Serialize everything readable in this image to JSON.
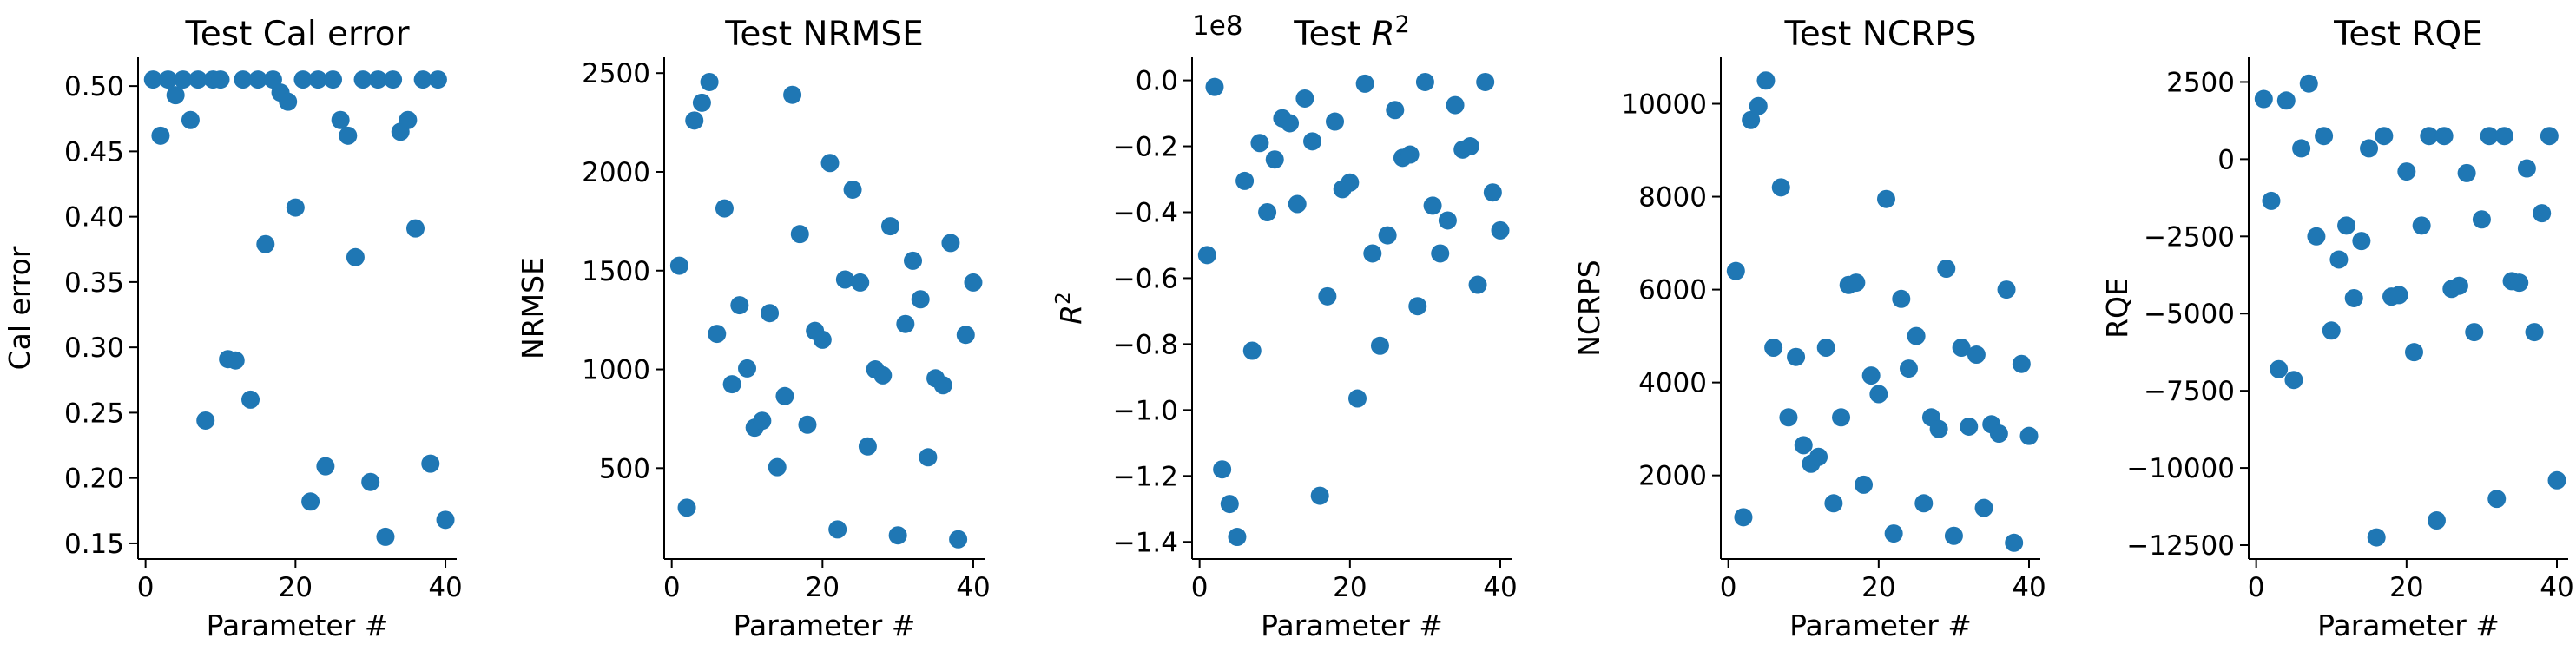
{
  "chart_data": [
    {
      "type": "scatter",
      "title": "Test Cal error",
      "xlabel": "Parameter #",
      "ylabel": "Cal error",
      "xlim": [
        -1,
        41.5
      ],
      "ylim": [
        0.138,
        0.522
      ],
      "xticks": [
        0,
        20,
        40
      ],
      "yticks": [
        0.15,
        0.2,
        0.25,
        0.3,
        0.35,
        0.4,
        0.45,
        0.5
      ],
      "ytick_labels": [
        "0.15",
        "0.20",
        "0.25",
        "0.30",
        "0.35",
        "0.40",
        "0.45",
        "0.50"
      ],
      "offset_text": "",
      "color": "#1f77b4",
      "x": [
        1,
        2,
        3,
        4,
        5,
        6,
        7,
        8,
        9,
        10,
        11,
        12,
        13,
        14,
        15,
        16,
        17,
        18,
        19,
        20,
        21,
        22,
        23,
        24,
        25,
        26,
        27,
        28,
        29,
        30,
        31,
        32,
        33,
        34,
        35,
        36,
        37,
        38,
        39,
        40
      ],
      "y": [
        0.505,
        0.462,
        0.505,
        0.493,
        0.505,
        0.474,
        0.505,
        0.244,
        0.505,
        0.505,
        0.291,
        0.29,
        0.505,
        0.26,
        0.505,
        0.379,
        0.505,
        0.495,
        0.488,
        0.407,
        0.505,
        0.182,
        0.505,
        0.209,
        0.505,
        0.474,
        0.462,
        0.369,
        0.505,
        0.197,
        0.505,
        0.155,
        0.505,
        0.465,
        0.474,
        0.391,
        0.505,
        0.211,
        0.505,
        0.168
      ]
    },
    {
      "type": "scatter",
      "title": "Test NRMSE",
      "xlabel": "Parameter #",
      "ylabel": "NRMSE",
      "xlim": [
        -1,
        41.5
      ],
      "ylim": [
        40,
        2580
      ],
      "xticks": [
        0,
        20,
        40
      ],
      "yticks": [
        500,
        1000,
        1500,
        2000,
        2500
      ],
      "ytick_labels": [
        "500",
        "1000",
        "1500",
        "2000",
        "2500"
      ],
      "offset_text": "",
      "color": "#1f77b4",
      "x": [
        1,
        2,
        3,
        4,
        5,
        6,
        7,
        8,
        9,
        10,
        11,
        12,
        13,
        14,
        15,
        16,
        17,
        18,
        19,
        20,
        21,
        22,
        23,
        24,
        25,
        26,
        27,
        28,
        29,
        30,
        31,
        32,
        33,
        34,
        35,
        36,
        37,
        38,
        39,
        40
      ],
      "y": [
        1525,
        300,
        2260,
        2350,
        2455,
        1180,
        1815,
        925,
        1325,
        1005,
        705,
        740,
        1285,
        505,
        865,
        2390,
        1685,
        720,
        1195,
        1150,
        2045,
        190,
        1455,
        1910,
        1440,
        610,
        1000,
        970,
        1725,
        160,
        1230,
        1550,
        1355,
        555,
        955,
        920,
        1640,
        140,
        1175,
        1440
      ]
    },
    {
      "type": "scatter",
      "title": "Test R^2",
      "title_main": "Test ",
      "title_symbol": "R",
      "title_sup": "2",
      "xlabel": "Parameter #",
      "ylabel": "R^2",
      "ylabel_symbol": "R",
      "ylabel_sup": "2",
      "xlim": [
        -1,
        41.5
      ],
      "ylim": [
        -1.452,
        0.07
      ],
      "xticks": [
        0,
        20,
        40
      ],
      "yticks": [
        -1.4,
        -1.2,
        -1.0,
        -0.8,
        -0.6,
        -0.4,
        -0.2,
        0.0
      ],
      "ytick_labels": [
        "−1.4",
        "−1.2",
        "−1.0",
        "−0.8",
        "−0.6",
        "−0.4",
        "−0.2",
        "0.0"
      ],
      "offset_text": "1e8",
      "color": "#1f77b4",
      "x": [
        1,
        2,
        3,
        4,
        5,
        6,
        7,
        8,
        9,
        10,
        11,
        12,
        13,
        14,
        15,
        16,
        17,
        18,
        19,
        20,
        21,
        22,
        23,
        24,
        25,
        26,
        27,
        28,
        29,
        30,
        31,
        32,
        33,
        34,
        35,
        36,
        37,
        38,
        39,
        40
      ],
      "y": [
        -0.53,
        -0.02,
        -1.18,
        -1.285,
        -1.385,
        -0.305,
        -0.82,
        -0.19,
        -0.4,
        -0.24,
        -0.115,
        -0.13,
        -0.375,
        -0.055,
        -0.185,
        -1.26,
        -0.655,
        -0.125,
        -0.33,
        -0.31,
        -0.965,
        -0.01,
        -0.525,
        -0.805,
        -0.47,
        -0.09,
        -0.235,
        -0.225,
        -0.685,
        -0.005,
        -0.38,
        -0.525,
        -0.425,
        -0.075,
        -0.21,
        -0.2,
        -0.62,
        -0.005,
        -0.34,
        -0.455
      ]
    },
    {
      "type": "scatter",
      "title": "Test NCRPS",
      "xlabel": "Parameter #",
      "ylabel": "NCRPS",
      "xlim": [
        -1,
        41.5
      ],
      "ylim": [
        200,
        11000
      ],
      "xticks": [
        0,
        20,
        40
      ],
      "yticks": [
        2000,
        4000,
        6000,
        8000,
        10000
      ],
      "ytick_labels": [
        "2000",
        "4000",
        "6000",
        "8000",
        "10000"
      ],
      "offset_text": "",
      "color": "#1f77b4",
      "x": [
        1,
        2,
        3,
        4,
        5,
        6,
        7,
        8,
        9,
        10,
        11,
        12,
        13,
        14,
        15,
        16,
        17,
        18,
        19,
        20,
        21,
        22,
        23,
        24,
        25,
        26,
        27,
        28,
        29,
        30,
        31,
        32,
        33,
        34,
        35,
        36,
        37,
        38,
        39,
        40
      ],
      "y": [
        6400,
        1100,
        9650,
        9950,
        10500,
        4750,
        8200,
        3250,
        4550,
        2650,
        2250,
        2400,
        4750,
        1400,
        3250,
        6100,
        6150,
        1800,
        4150,
        3750,
        7950,
        750,
        5800,
        4300,
        5000,
        1400,
        3250,
        3000,
        6450,
        700,
        4750,
        3050,
        4600,
        1300,
        3100,
        2900,
        6000,
        550,
        4400,
        2850
      ]
    },
    {
      "type": "scatter",
      "title": "Test RQE",
      "xlabel": "Parameter #",
      "ylabel": "RQE",
      "xlim": [
        -1,
        41.5
      ],
      "ylim": [
        -12950,
        3300
      ],
      "xticks": [
        0,
        20,
        40
      ],
      "yticks": [
        -12500,
        -10000,
        -7500,
        -5000,
        -2500,
        0,
        2500
      ],
      "ytick_labels": [
        "−12500",
        "−10000",
        "−7500",
        "−5000",
        "−2500",
        "0",
        "2500"
      ],
      "offset_text": "",
      "color": "#1f77b4",
      "x": [
        1,
        2,
        3,
        4,
        5,
        6,
        7,
        8,
        9,
        10,
        11,
        12,
        13,
        14,
        15,
        16,
        17,
        18,
        19,
        20,
        21,
        22,
        23,
        24,
        25,
        26,
        27,
        28,
        29,
        30,
        31,
        32,
        33,
        34,
        35,
        36,
        37,
        38,
        39,
        40
      ],
      "y": [
        1950,
        -1350,
        -6800,
        1900,
        -7150,
        350,
        2450,
        -2500,
        750,
        -5550,
        -3250,
        -2150,
        -4500,
        -2650,
        350,
        -12250,
        750,
        -4450,
        -4400,
        -400,
        -6250,
        -2150,
        750,
        -11700,
        750,
        -4200,
        -4100,
        -450,
        -5600,
        -1950,
        750,
        -11000,
        750,
        -3950,
        -4000,
        -300,
        -5600,
        -1750,
        750,
        -10400
      ]
    }
  ]
}
